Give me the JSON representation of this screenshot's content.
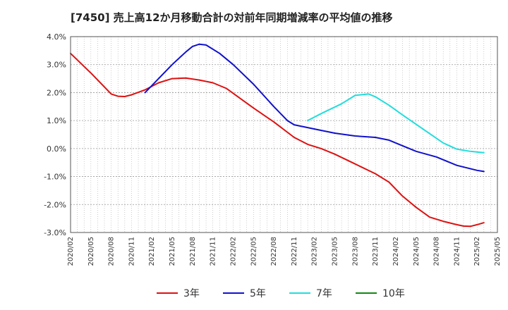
{
  "title": "[7450]  売上高12か月移動合計の対前年同期増減率の平均値の推移",
  "chart_data": {
    "type": "line",
    "ylim": [
      -3.0,
      4.0
    ],
    "y_ticks": [
      "4.0%",
      "3.0%",
      "2.0%",
      "1.0%",
      "0.0%",
      "-1.0%",
      "-2.0%",
      "-3.0%"
    ],
    "x_ticks": [
      "2020/02",
      "2020/05",
      "2020/08",
      "2020/11",
      "2021/02",
      "2021/05",
      "2021/08",
      "2021/11",
      "2022/02",
      "2022/05",
      "2022/08",
      "2022/11",
      "2023/02",
      "2023/05",
      "2023/08",
      "2023/11",
      "2024/02",
      "2024/05",
      "2024/08",
      "2024/11",
      "2025/02",
      "2025/05"
    ],
    "grid": true,
    "legend_position": "bottom",
    "series": [
      {
        "name": "3年",
        "color": "#dd1111",
        "points": [
          [
            "2020/02",
            3.4
          ],
          [
            "2020/05",
            2.7
          ],
          [
            "2020/08",
            1.95
          ],
          [
            "2020/09",
            1.87
          ],
          [
            "2020/10",
            1.86
          ],
          [
            "2020/11",
            1.92
          ],
          [
            "2021/01",
            2.1
          ],
          [
            "2021/03",
            2.35
          ],
          [
            "2021/05",
            2.5
          ],
          [
            "2021/07",
            2.52
          ],
          [
            "2021/09",
            2.45
          ],
          [
            "2021/11",
            2.35
          ],
          [
            "2022/01",
            2.15
          ],
          [
            "2022/03",
            1.8
          ],
          [
            "2022/05",
            1.45
          ],
          [
            "2022/08",
            0.95
          ],
          [
            "2022/11",
            0.4
          ],
          [
            "2023/01",
            0.15
          ],
          [
            "2023/03",
            0.0
          ],
          [
            "2023/05",
            -0.2
          ],
          [
            "2023/08",
            -0.55
          ],
          [
            "2023/11",
            -0.9
          ],
          [
            "2024/01",
            -1.2
          ],
          [
            "2024/03",
            -1.7
          ],
          [
            "2024/05",
            -2.1
          ],
          [
            "2024/07",
            -2.45
          ],
          [
            "2024/09",
            -2.6
          ],
          [
            "2024/11",
            -2.72
          ],
          [
            "2024/12",
            -2.77
          ],
          [
            "2025/01",
            -2.78
          ],
          [
            "2025/02",
            -2.72
          ],
          [
            "2025/03",
            -2.65
          ]
        ]
      },
      {
        "name": "5年",
        "color": "#1111cc",
        "points": [
          [
            "2021/01",
            2.0
          ],
          [
            "2021/03",
            2.5
          ],
          [
            "2021/05",
            3.0
          ],
          [
            "2021/07",
            3.45
          ],
          [
            "2021/08",
            3.65
          ],
          [
            "2021/09",
            3.73
          ],
          [
            "2021/10",
            3.7
          ],
          [
            "2021/12",
            3.4
          ],
          [
            "2022/02",
            3.0
          ],
          [
            "2022/05",
            2.3
          ],
          [
            "2022/08",
            1.5
          ],
          [
            "2022/10",
            1.0
          ],
          [
            "2022/11",
            0.85
          ],
          [
            "2023/02",
            0.7
          ],
          [
            "2023/05",
            0.55
          ],
          [
            "2023/08",
            0.45
          ],
          [
            "2023/11",
            0.4
          ],
          [
            "2024/01",
            0.3
          ],
          [
            "2024/03",
            0.1
          ],
          [
            "2024/05",
            -0.1
          ],
          [
            "2024/08",
            -0.3
          ],
          [
            "2024/11",
            -0.6
          ],
          [
            "2025/02",
            -0.78
          ],
          [
            "2025/03",
            -0.82
          ]
        ]
      },
      {
        "name": "7年",
        "color": "#22dddd",
        "points": [
          [
            "2023/01",
            1.0
          ],
          [
            "2023/03",
            1.25
          ],
          [
            "2023/06",
            1.6
          ],
          [
            "2023/08",
            1.9
          ],
          [
            "2023/10",
            1.95
          ],
          [
            "2023/11",
            1.85
          ],
          [
            "2024/01",
            1.55
          ],
          [
            "2024/03",
            1.2
          ],
          [
            "2024/06",
            0.7
          ],
          [
            "2024/09",
            0.2
          ],
          [
            "2024/11",
            -0.02
          ],
          [
            "2025/01",
            -0.1
          ],
          [
            "2025/03",
            -0.15
          ]
        ]
      },
      {
        "name": "10年",
        "color": "#118811",
        "points": []
      }
    ]
  }
}
